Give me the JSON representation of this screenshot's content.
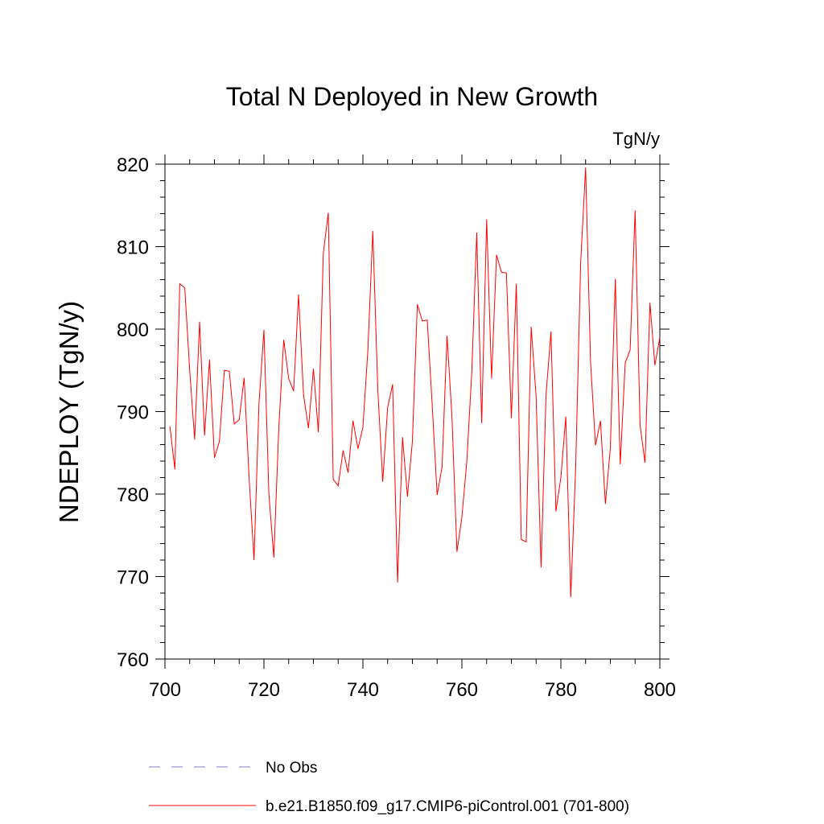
{
  "chart_data": {
    "type": "line",
    "title": "Total N Deployed in New Growth",
    "units": "TgN/y",
    "xlabel": "",
    "ylabel": "NDEPLOY  (TgN/y)",
    "xlim": [
      700,
      800
    ],
    "ylim": [
      760,
      820
    ],
    "xticks": [
      700,
      720,
      740,
      760,
      780,
      800
    ],
    "yticks": [
      760,
      770,
      780,
      790,
      800,
      810,
      820
    ],
    "x_start": 701,
    "series": [
      {
        "name": "b.e21.B1850.f09_g17.CMIP6-piControl.001 (701-800)",
        "color": "#ff0000",
        "values": [
          788.2,
          783.0,
          805.5,
          805.0,
          795.0,
          786.6,
          800.9,
          787.1,
          796.3,
          784.4,
          786.4,
          795.0,
          794.9,
          788.5,
          789.0,
          794.1,
          782.0,
          772.0,
          791.0,
          799.9,
          780.0,
          772.3,
          788.0,
          798.7,
          794.0,
          792.5,
          804.2,
          792.0,
          788.0,
          795.2,
          787.5,
          809.2,
          814.1,
          781.8,
          781.0,
          785.3,
          782.6,
          788.9,
          785.5,
          788.1,
          797.4,
          811.9,
          792.8,
          781.5,
          790.5,
          793.3,
          769.3,
          786.9,
          779.7,
          786.4,
          803.0,
          801.0,
          801.1,
          790.8,
          779.9,
          783.3,
          799.2,
          789.3,
          773.0,
          777.2,
          784.0,
          794.8,
          811.7,
          788.6,
          813.3,
          794.0,
          809.0,
          806.9,
          806.8,
          789.2,
          805.5,
          774.5,
          774.2,
          800.3,
          791.8,
          771.1,
          792.0,
          799.7,
          777.9,
          782.0,
          789.4,
          767.5,
          783.4,
          808.0,
          819.6,
          796.0,
          785.9,
          788.9,
          778.8,
          785.6,
          806.1,
          783.6,
          795.9,
          797.5,
          814.4,
          788.4,
          783.8,
          803.2,
          795.6,
          799.0
        ]
      },
      {
        "name": "No Obs",
        "color": "#7d7bd0",
        "dash": "dashed",
        "values": []
      }
    ],
    "legend_position": "bottom-left"
  }
}
